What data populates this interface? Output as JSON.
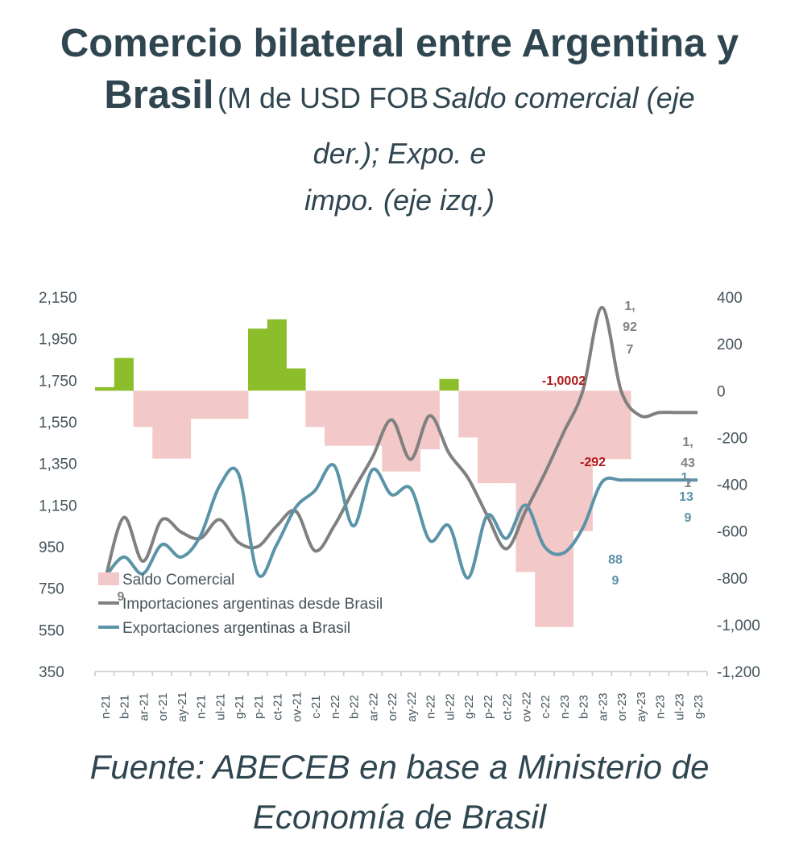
{
  "title": {
    "line1": "Comercio bilateral entre Argentina y",
    "line2_bold": "Brasil",
    "line2_normal": "(M de USD FOB",
    "line2_italic": "Saldo comercial (eje",
    "line3": "der.); Expo. e",
    "line4": "impo. (eje izq.)"
  },
  "source": {
    "line1": "Fuente: ABECEB en base a Ministerio de",
    "line2": "Economía de Brasil"
  },
  "colors": {
    "imports": "#808080",
    "exports": "#5b93a8",
    "balance_positive": "#8cbd2a",
    "balance_negative": "#f3c8c8",
    "axis_text": "#44545b",
    "annotation_red": "#b01818"
  },
  "chart_data": {
    "type": "combo",
    "x_tick_labels": [
      "n-21",
      "b-21",
      "ar-21",
      "or-21",
      "ay-21",
      "n-21",
      "ul-21",
      "g-21",
      "p-21",
      "ct-21",
      "ov-21",
      "c-21",
      "n-22",
      "b-22",
      "ar-22",
      "or-22",
      "ay-22",
      "n-22",
      "ul-22",
      "g-22",
      "p-22",
      "ct-22",
      "ov-22",
      "c-22",
      "n-23",
      "b-23",
      "ar-23",
      "or-23",
      "ay-23",
      "n-23",
      "ul-23",
      "g-23"
    ],
    "left_axis": {
      "ticks": [
        "2,150",
        "1,950",
        "1,750",
        "1,550",
        "1,350",
        "1,150",
        "950",
        "750",
        "550",
        "350"
      ],
      "range": [
        350,
        2150
      ]
    },
    "right_axis": {
      "ticks": [
        "400",
        "200",
        "0",
        "-200",
        "-400",
        "-600",
        "-800",
        "-1,000",
        "-1,200"
      ],
      "range": [
        -1200,
        400
      ]
    },
    "series": [
      {
        "name": "Saldo Comercial",
        "type": "bar",
        "axis": "right",
        "values": [
          15,
          140,
          -155,
          -290,
          -290,
          -120,
          -120,
          -120,
          265,
          305,
          95,
          -155,
          -235,
          -235,
          -235,
          -345,
          -345,
          -250,
          50,
          -200,
          -395,
          -395,
          -775,
          -1010,
          -1010,
          -600,
          -292,
          -292,
          0,
          0,
          0,
          0
        ]
      },
      {
        "name": "Importaciones argentinas desde Brasil",
        "type": "line",
        "axis": "left",
        "values": [
          780,
          1090,
          880,
          1080,
          1020,
          990,
          1080,
          970,
          950,
          1050,
          1120,
          930,
          1050,
          1220,
          1380,
          1560,
          1370,
          1580,
          1400,
          1280,
          1100,
          940,
          1120,
          1300,
          1500,
          1700,
          2100,
          1700,
          1580,
          1595,
          1595,
          1595
        ]
      },
      {
        "name": "Exportaciones argentinas a Brasil",
        "type": "line",
        "axis": "left",
        "values": [
          800,
          900,
          820,
          960,
          900,
          1000,
          1240,
          1300,
          820,
          960,
          1140,
          1220,
          1340,
          1050,
          1320,
          1200,
          1230,
          980,
          1050,
          800,
          1100,
          990,
          1150,
          950,
          920,
          1040,
          1260,
          1270,
          1270,
          1270,
          1270,
          1270
        ]
      }
    ],
    "annotations": [
      {
        "text": "-1,0002",
        "color": "red"
      },
      {
        "text": "-292",
        "color": "red"
      },
      {
        "text": "1,",
        "color": "gray"
      },
      {
        "text": "92",
        "color": "gray"
      },
      {
        "text": "7",
        "color": "gray"
      },
      {
        "text": "1,",
        "color": "gray"
      },
      {
        "text": "43",
        "color": "gray"
      },
      {
        "text": "1",
        "color": "gray"
      },
      {
        "text": "1,",
        "color": "teal"
      },
      {
        "text": "13",
        "color": "teal"
      },
      {
        "text": "9",
        "color": "teal"
      },
      {
        "text": "88",
        "color": "teal"
      },
      {
        "text": "9",
        "color": "teal"
      },
      {
        "text": "9",
        "color": "gray"
      }
    ],
    "legend": {
      "placement": "bottom-left"
    },
    "grid": false
  }
}
